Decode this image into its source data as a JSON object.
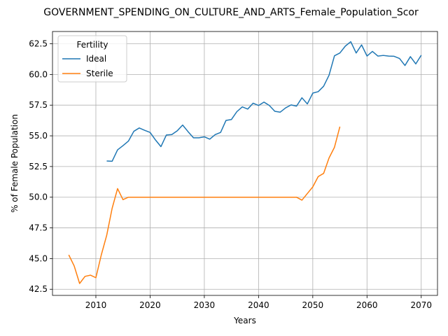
{
  "chart_data": {
    "type": "line",
    "title": "GOVERNMENT_SPENDING_ON_CULTURE_AND_ARTS_Female_Population_Scor",
    "xlabel": "Years",
    "ylabel": "% of Female Population",
    "xlim": [
      2002,
      2073
    ],
    "ylim": [
      42.0,
      63.5
    ],
    "xticks": [
      2010,
      2020,
      2030,
      2040,
      2050,
      2060,
      2070
    ],
    "yticks": [
      42.5,
      45.0,
      47.5,
      50.0,
      52.5,
      55.0,
      57.5,
      60.0,
      62.5
    ],
    "ytick_labels": [
      "42.5",
      "45.0",
      "47.5",
      "50.0",
      "52.5",
      "55.0",
      "57.5",
      "60.0",
      "62.5"
    ],
    "grid": true,
    "legend": {
      "title": "Fertility",
      "placement": "top-left"
    },
    "series": [
      {
        "name": "Ideal",
        "color": "#1f77b4",
        "x": [
          2012,
          2013,
          2014,
          2015,
          2016,
          2017,
          2018,
          2019,
          2020,
          2021,
          2022,
          2023,
          2024,
          2025,
          2026,
          2027,
          2028,
          2029,
          2030,
          2031,
          2032,
          2033,
          2034,
          2035,
          2036,
          2037,
          2038,
          2039,
          2040,
          2041,
          2042,
          2043,
          2044,
          2045,
          2046,
          2047,
          2048,
          2049,
          2050,
          2051,
          2052,
          2053,
          2054,
          2055,
          2056,
          2057,
          2058,
          2059,
          2060,
          2061,
          2062,
          2063,
          2064,
          2065,
          2066,
          2067,
          2068,
          2069,
          2070
        ],
        "y": [
          52.95,
          52.93,
          53.86,
          54.2,
          54.57,
          55.37,
          55.64,
          55.45,
          55.28,
          54.66,
          54.12,
          55.07,
          55.1,
          55.41,
          55.88,
          55.34,
          54.84,
          54.84,
          54.92,
          54.73,
          55.1,
          55.28,
          56.26,
          56.33,
          56.97,
          57.36,
          57.18,
          57.66,
          57.47,
          57.75,
          57.47,
          57.0,
          56.93,
          57.28,
          57.52,
          57.42,
          58.1,
          57.6,
          58.48,
          58.6,
          59.04,
          59.94,
          61.52,
          61.75,
          62.31,
          62.67,
          61.75,
          62.41,
          61.5,
          61.88,
          61.5,
          61.55,
          61.5,
          61.48,
          61.3,
          60.73,
          61.45,
          60.86,
          61.57
        ]
      },
      {
        "name": "Sterile",
        "color": "#ff7f0e",
        "x": [
          2005,
          2006,
          2007,
          2008,
          2009,
          2010,
          2011,
          2012,
          2013,
          2014,
          2015,
          2016,
          2017,
          2018,
          2019,
          2020,
          2021,
          2022,
          2023,
          2024,
          2025,
          2026,
          2027,
          2028,
          2029,
          2030,
          2031,
          2032,
          2033,
          2034,
          2035,
          2036,
          2037,
          2038,
          2039,
          2040,
          2041,
          2042,
          2043,
          2044,
          2045,
          2046,
          2047,
          2048,
          2049,
          2050,
          2051,
          2052,
          2053,
          2054,
          2055
        ],
        "y": [
          45.3,
          44.4,
          42.97,
          43.55,
          43.65,
          43.44,
          45.3,
          46.9,
          49.1,
          50.7,
          49.8,
          50.0,
          50.0,
          50.0,
          50.0,
          50.0,
          50.0,
          50.0,
          50.0,
          50.0,
          50.0,
          50.0,
          50.0,
          50.0,
          50.0,
          50.0,
          50.0,
          50.0,
          50.0,
          50.0,
          50.0,
          50.0,
          50.0,
          50.0,
          50.0,
          50.0,
          50.0,
          50.0,
          50.0,
          50.0,
          50.0,
          50.0,
          50.0,
          49.76,
          50.3,
          50.84,
          51.68,
          51.94,
          53.2,
          54.07,
          55.75
        ]
      }
    ]
  }
}
